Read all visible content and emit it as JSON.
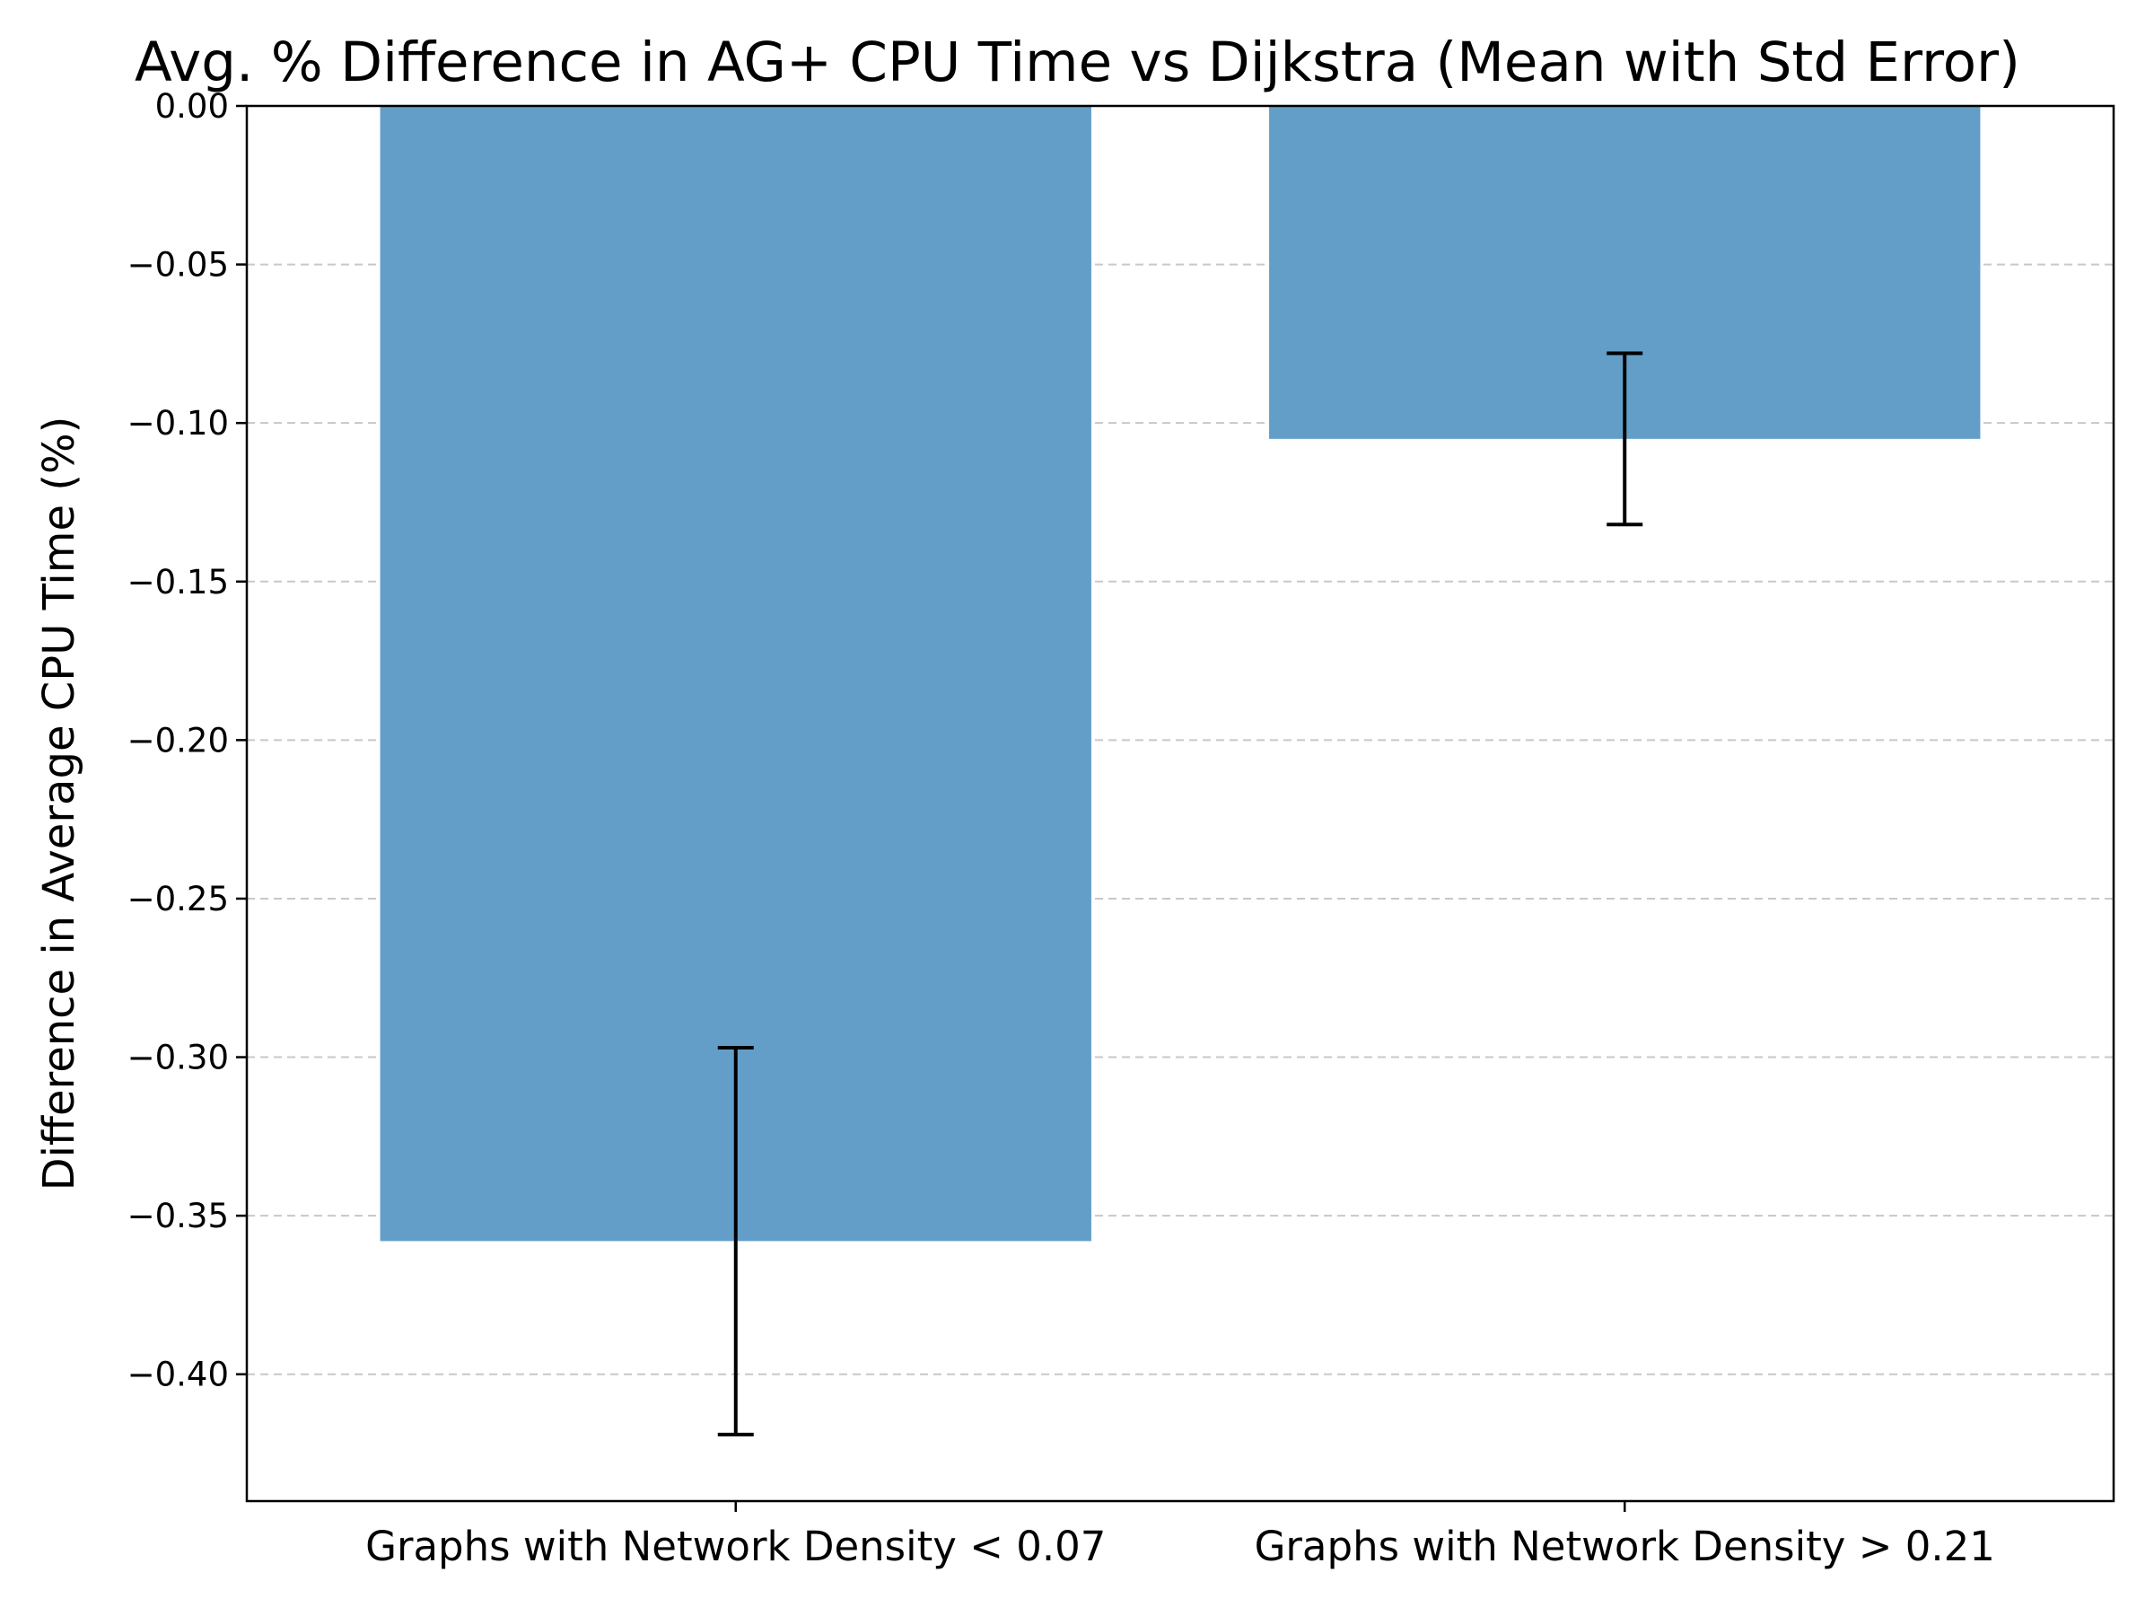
{
  "chart_data": {
    "type": "bar",
    "title": "Avg. % Difference in AG+ CPU Time vs Dijkstra (Mean with Std Error)",
    "xlabel": "",
    "ylabel": "Difference in Average CPU Time (%)",
    "categories": [
      "Graphs with Network Density < 0.07",
      "Graphs with Network Density > 0.21"
    ],
    "values": [
      -0.358,
      -0.105
    ],
    "errors": [
      0.061,
      0.027
    ],
    "ylim": [
      -0.44,
      0.0
    ],
    "yticks": [
      0.0,
      -0.05,
      -0.1,
      -0.15,
      -0.2,
      -0.25,
      -0.3,
      -0.35,
      -0.4
    ],
    "ytick_labels": [
      "0.00",
      "−0.05",
      "−0.10",
      "−0.15",
      "−0.20",
      "−0.25",
      "−0.30",
      "−0.35",
      "−0.40"
    ],
    "grid": "y, dashed",
    "colors": {
      "bar": "#639ec9",
      "error_bar": "#000000",
      "grid": "#c8c8c8",
      "axes": "#000000"
    }
  }
}
